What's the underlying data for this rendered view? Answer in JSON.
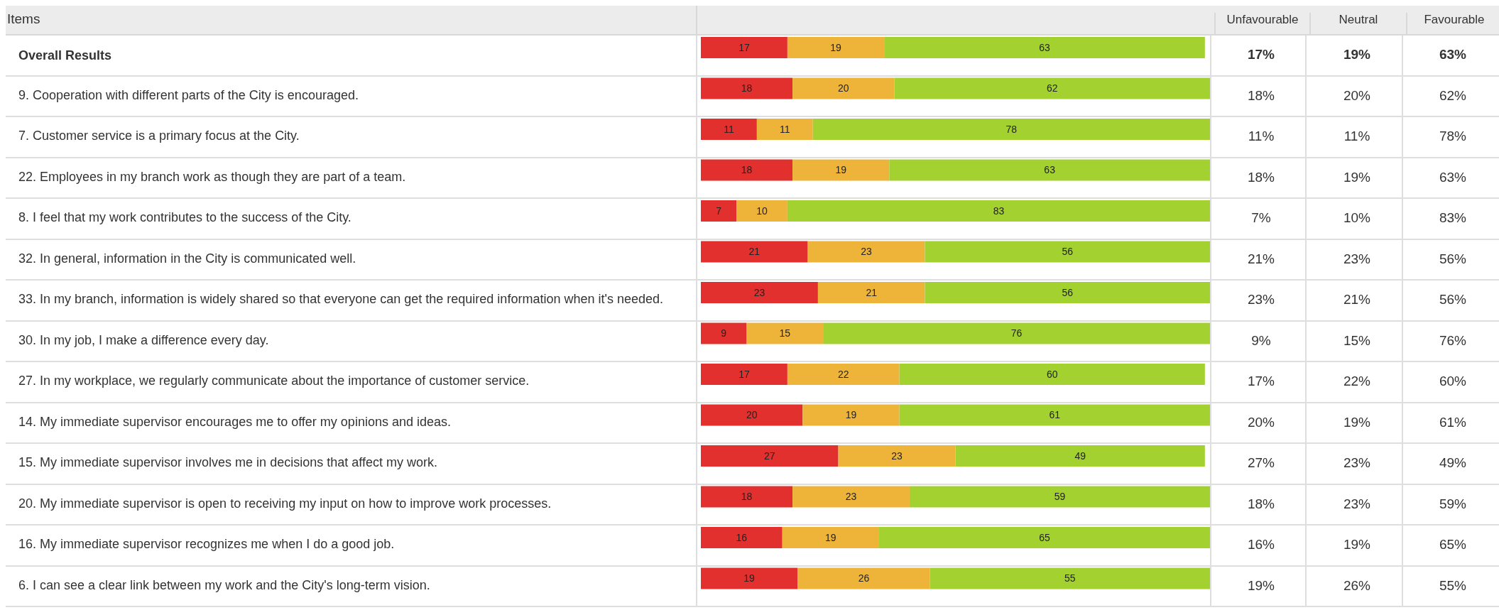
{
  "chart_data": {
    "type": "bar",
    "orientation": "horizontal",
    "stacked": true,
    "data_labels": true,
    "ylabel": "Items",
    "categories": [
      "Overall Results",
      "9. Cooperation with different parts of the City is encouraged.",
      "7. Customer service is a primary focus at the City.",
      "22. Employees in my branch work as though they are part of a team.",
      "8. I feel that my work contributes to the success of the City.",
      "32. In general, information in the City is communicated well.",
      "33. In my branch, information is widely shared so that everyone can get the required information when it's needed.",
      "30. In my job, I make a difference every day.",
      "27. In my workplace, we regularly communicate about the importance of customer service.",
      "14. My immediate supervisor encourages me to offer my opinions and ideas.",
      "15. My immediate supervisor involves me in decisions that affect my work.",
      "20. My immediate supervisor is open to receiving my input on how to improve work processes.",
      "16. My immediate supervisor recognizes me when I do a good job.",
      "6. I can see a clear link between my work and the City's long-term vision."
    ],
    "series": [
      {
        "name": "Unfavourable",
        "color": "#e2302e",
        "values": [
          17,
          18,
          11,
          18,
          7,
          21,
          23,
          9,
          17,
          20,
          27,
          18,
          16,
          19
        ]
      },
      {
        "name": "Neutral",
        "color": "#eeb43a",
        "values": [
          19,
          20,
          11,
          19,
          10,
          23,
          21,
          15,
          22,
          19,
          23,
          23,
          19,
          26
        ]
      },
      {
        "name": "Favourable",
        "color": "#a2d130",
        "values": [
          63,
          62,
          78,
          63,
          83,
          56,
          56,
          76,
          60,
          61,
          49,
          59,
          65,
          55
        ]
      }
    ],
    "annotations": [
      "17%",
      "19%",
      "63%",
      "18%",
      "20%",
      "62%",
      "11%",
      "11%",
      "78%",
      "18%",
      "19%",
      "63%",
      "7%",
      "10%",
      "83%",
      "21%",
      "23%",
      "56%",
      "23%",
      "21%",
      "56%",
      "9%",
      "15%",
      "76%",
      "17%",
      "22%",
      "60%",
      "20%",
      "19%",
      "61%",
      "27%",
      "23%",
      "49%",
      "18%",
      "23%",
      "59%",
      "16%",
      "19%",
      "65%",
      "19%",
      "26%",
      "55%"
    ],
    "legend": "top right"
  }
}
